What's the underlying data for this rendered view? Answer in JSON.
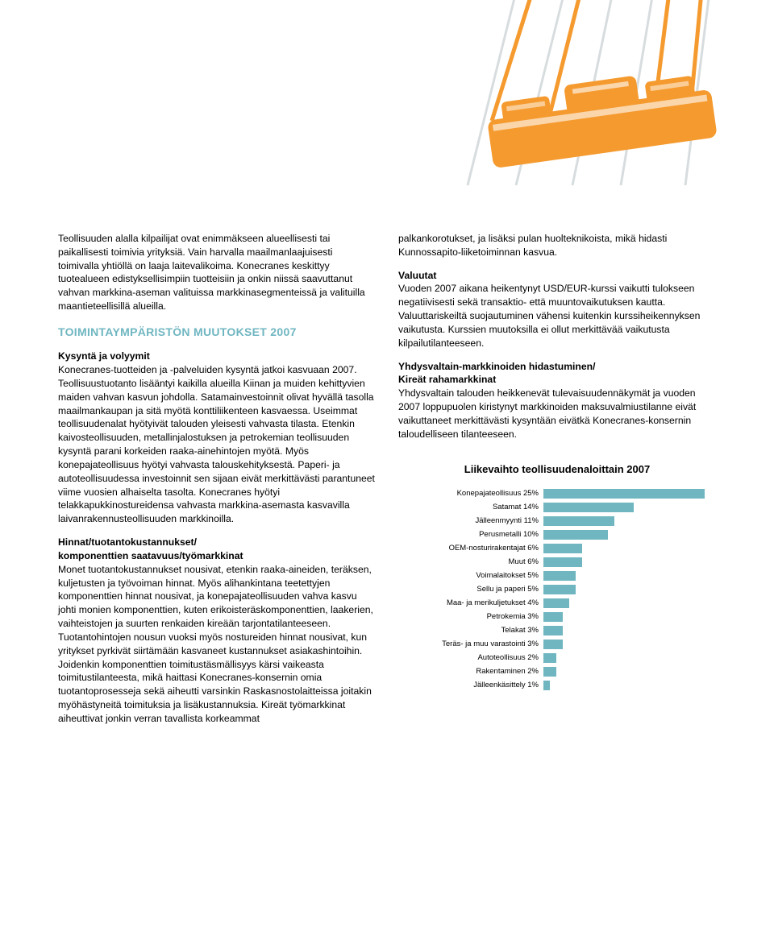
{
  "hero": {
    "background": "#ffffff",
    "rope_color": "#f59a2e",
    "spreader_color": "#f59a2e",
    "shadow_color": "#a7b2b7"
  },
  "col1": {
    "p1": "Teollisuuden alalla kilpailijat ovat enimmäkseen alueellisesti tai paikallisesti toimivia yrityksiä. Vain harvalla maailmanlaajuisesti toimivalla yhtiöllä on laaja laitevalikoima. Konecranes keskittyy tuotealueen edistyksellisimpiin tuotteisiin ja onkin niissä saavuttanut vahvan markkina-aseman valituissa markkinasegmenteissä ja valituilla maantieteellisillä alueilla.",
    "section_title": "TOIMINTAYMPÄRISTÖN MUUTOKSET 2007",
    "sub1": "Kysyntä ja volyymit",
    "p2": "Konecranes-tuotteiden ja -palveluiden kysyntä jatkoi kasvuaan 2007. Teollisuustuotanto lisääntyi kaikilla alueilla Kiinan ja muiden kehittyvien maiden vahvan kasvun johdolla. Satamainvestoinnit olivat hyvällä tasolla maailmankaupan ja sitä myötä konttiliikenteen kasvaessa. Useimmat teollisuudenalat hyötyivät talouden yleisesti vahvasta tilasta. Etenkin kaivosteollisuuden, metallinjalostuksen ja petrokemian teollisuuden kysyntä parani korkeiden raaka-ainehintojen myötä. Myös konepajateollisuus hyötyi vahvasta talouskehityksestä. Paperi- ja autoteollisuudessa investoinnit sen sijaan eivät merkittävästi parantuneet viime vuosien alhaiselta tasolta. Konecranes hyötyi telakkapukkinostureidensa vahvasta markkina-asemasta kasvavilla laivanrakennusteollisuuden markkinoilla.",
    "sub2a": "Hinnat/tuotantokustannukset/",
    "sub2b": "komponenttien saatavuus/työmarkkinat",
    "p3": "Monet tuotantokustannukset nousivat, etenkin raaka-aineiden, teräksen, kuljetusten ja työvoiman hinnat. Myös alihankintana teetettyjen komponenttien hinnat nousivat, ja konepajateollisuuden vahva kasvu johti monien komponenttien, kuten erikoisteräskomponenttien, laakerien, vaihteistojen ja suurten renkaiden kireään tarjontatilanteeseen. Tuotantohintojen nousun vuoksi myös nostureiden hinnat nousivat, kun yritykset pyrkivät siirtämään kasvaneet kustannukset asiakashintoihin. Joidenkin komponenttien toimitustäsmällisyys kärsi vaikeasta toimitustilanteesta, mikä haittasi Konecranes-konsernin omia tuotantoprosesseja sekä aiheutti varsinkin Raskasnostolaitteissa joitakin myöhästyneitä toimituksia ja lisäkustannuksia. Kireät työmarkkinat aiheuttivat jonkin verran tavallista korkeammat"
  },
  "col2": {
    "p1": "palkankorotukset, ja lisäksi pulan huolteknikoista, mikä hidasti Kunnossapito-liiketoiminnan kasvua.",
    "sub1": "Valuutat",
    "p2": "Vuoden 2007 aikana heikentynyt USD/EUR-kurssi vaikutti tulokseen negatiivisesti sekä transaktio- että muuntovaikutuksen kautta. Valuuttariskeiltä suojautuminen vähensi kuitenkin kurssiheikennyksen vaikutusta. Kurssien muutoksilla ei ollut merkittävää vaikutusta kilpailutilanteeseen.",
    "sub2a": "Yhdysvaltain-markkinoiden hidastuminen/",
    "sub2b": "Kireät rahamarkkinat",
    "p3": "Yhdysvaltain talouden heikkenevät tulevaisuudennäkymät ja vuoden 2007 loppupuolen kiristynyt markkinoiden maksuvalmiustilanne eivät vaikuttaneet merkittävästi kysyntään eivätkä Konecranes-konsernin taloudelliseen tilanteeseen."
  },
  "chart": {
    "title": "Liikevaihto teollisuudenaloittain 2007",
    "bar_color": "#6fb6c1",
    "max_value": 25,
    "label_fontsize": 9.5,
    "title_fontsize": 13,
    "rows": [
      {
        "label": "Konepajateollisuus 25%",
        "value": 25
      },
      {
        "label": "Satamat 14%",
        "value": 14
      },
      {
        "label": "Jälleenmyynti 11%",
        "value": 11
      },
      {
        "label": "Perusmetalli 10%",
        "value": 10
      },
      {
        "label": "OEM-nosturirakentajat 6%",
        "value": 6
      },
      {
        "label": "Muut 6%",
        "value": 6
      },
      {
        "label": "Voimalaitokset 5%",
        "value": 5
      },
      {
        "label": "Sellu ja paperi 5%",
        "value": 5
      },
      {
        "label": "Maa- ja merikuljetukset 4%",
        "value": 4
      },
      {
        "label": "Petrokemia 3%",
        "value": 3
      },
      {
        "label": "Telakat 3%",
        "value": 3
      },
      {
        "label": "Teräs- ja muu varastointi 3%",
        "value": 3
      },
      {
        "label": "Autoteollisuus 2%",
        "value": 2
      },
      {
        "label": "Rakentaminen 2%",
        "value": 2
      },
      {
        "label": "Jälleenkäsittely 1%",
        "value": 1
      }
    ]
  }
}
